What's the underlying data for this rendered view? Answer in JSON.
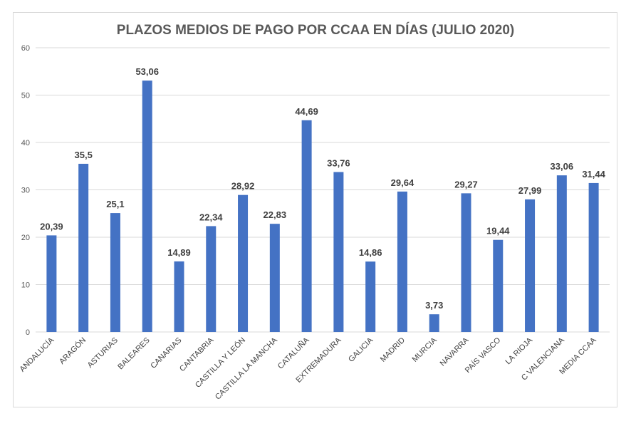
{
  "chart_data": {
    "type": "bar",
    "title": "PLAZOS MEDIOS DE PAGO POR CCAA EN DÍAS (JULIO 2020)",
    "xlabel": "",
    "ylabel": "",
    "ylim": [
      0,
      60
    ],
    "yticks": [
      0,
      10,
      20,
      30,
      40,
      50,
      60
    ],
    "grid": true,
    "bar_color": "#4472c4",
    "categories": [
      "ANDALUCÍA",
      "ARAGÓN",
      "ASTURIAS",
      "BALEARES",
      "CANARIAS",
      "CANTABRIA",
      "CASTILLA Y LEÓN",
      "CASTILLA LA MANCHA",
      "CATALUÑA",
      "EXTREMADURA",
      "GALICIA",
      "MADRID",
      "MURCIA",
      "NAVARRA",
      "PAÍS VASCO",
      "LA RIOJA",
      "C VALENCIANA",
      "MEDIA CCAA"
    ],
    "values": [
      20.39,
      35.5,
      25.1,
      53.06,
      14.89,
      22.34,
      28.92,
      22.83,
      44.69,
      33.76,
      14.86,
      29.64,
      3.73,
      29.27,
      19.44,
      27.99,
      33.06,
      31.44
    ],
    "data_labels": [
      "20,39",
      "35,5",
      "25,1",
      "53,06",
      "14,89",
      "22,34",
      "28,92",
      "22,83",
      "44,69",
      "33,76",
      "14,86",
      "29,64",
      "3,73",
      "29,27",
      "19,44",
      "27,99",
      "33,06",
      "31,44"
    ]
  }
}
